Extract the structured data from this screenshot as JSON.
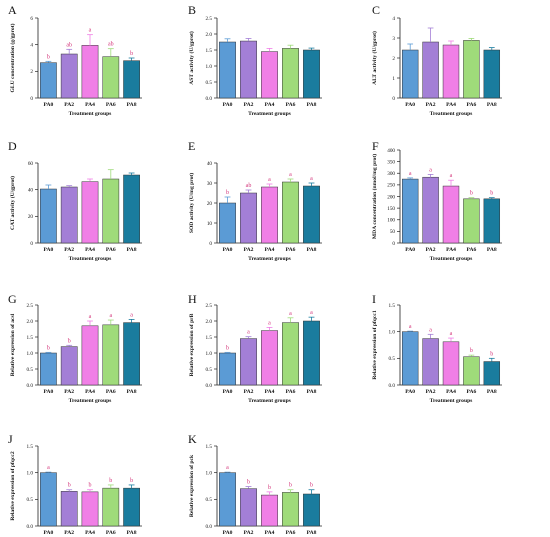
{
  "colors": {
    "PA0": "#5B9BD5",
    "PA2": "#A37FD6",
    "PA4": "#F07FE6",
    "PA6": "#9FDB7A",
    "PA8": "#1A7C9E",
    "sig": "#D4357A",
    "axis": "#222222"
  },
  "chart_data": [
    {
      "panel": "A",
      "type": "bar",
      "categories": [
        "PA0",
        "PA2",
        "PA4",
        "PA6",
        "PA8"
      ],
      "values": [
        2.65,
        3.3,
        3.95,
        3.1,
        2.8
      ],
      "errors": [
        0.1,
        0.35,
        0.8,
        0.6,
        0.2
      ],
      "sig": [
        "b",
        "ab",
        "a",
        "ab",
        "b"
      ],
      "ylabel": "GLU concentration (g/gprot)",
      "xlabel": "Treatment groups",
      "ylim": [
        0,
        6
      ],
      "yticks": [
        "0",
        "2",
        "4",
        "6"
      ]
    },
    {
      "panel": "B",
      "type": "bar",
      "categories": [
        "PA0",
        "PA2",
        "PA4",
        "PA6",
        "PA8"
      ],
      "values": [
        1.75,
        1.78,
        1.45,
        1.55,
        1.5
      ],
      "errors": [
        0.1,
        0.08,
        0.1,
        0.1,
        0.06
      ],
      "sig": [
        "",
        "",
        "",
        "",
        ""
      ],
      "ylabel": "AST activity (U/gprot)",
      "xlabel": "Treatment groups",
      "ylim": [
        0,
        2.5
      ],
      "yticks": [
        "0.0",
        "0.5",
        "1.0",
        "1.5",
        "2.0",
        "2.5"
      ]
    },
    {
      "panel": "C",
      "type": "bar",
      "categories": [
        "PA0",
        "PA2",
        "PA4",
        "PA6",
        "PA8"
      ],
      "values": [
        2.4,
        2.8,
        2.65,
        2.88,
        2.4
      ],
      "errors": [
        0.3,
        0.7,
        0.2,
        0.1,
        0.12
      ],
      "sig": [
        "",
        "",
        "",
        "",
        ""
      ],
      "ylabel": "ALT activity (U/gprot)",
      "xlabel": "Treatment groups",
      "ylim": [
        0,
        4
      ],
      "yticks": [
        "0",
        "1",
        "2",
        "3",
        "4"
      ]
    },
    {
      "panel": "D",
      "type": "bar",
      "categories": [
        "PA0",
        "PA2",
        "PA4",
        "PA6",
        "PA8"
      ],
      "values": [
        40.5,
        42,
        46,
        48,
        51
      ],
      "errors": [
        3,
        1,
        2,
        7,
        1.5
      ],
      "sig": [
        "",
        "",
        "",
        "",
        ""
      ],
      "ylabel": "CAT activity (U/gprot)",
      "xlabel": "Treatment groups",
      "ylim": [
        0,
        60
      ],
      "yticks": [
        "0",
        "20",
        "40",
        "60"
      ]
    },
    {
      "panel": "E",
      "type": "bar",
      "categories": [
        "PA0",
        "PA2",
        "PA4",
        "PA6",
        "PA8"
      ],
      "values": [
        20,
        25,
        28,
        30.5,
        28.5
      ],
      "errors": [
        3,
        1.5,
        1.5,
        1.5,
        1.5
      ],
      "sig": [
        "b",
        "ab",
        "a",
        "a",
        "a"
      ],
      "ylabel": "SOD activity (U/mg prot)",
      "xlabel": "Treatment groups",
      "ylim": [
        0,
        40
      ],
      "yticks": [
        "0",
        "10",
        "20",
        "30",
        "40"
      ]
    },
    {
      "panel": "F",
      "type": "bar",
      "categories": [
        "PA0",
        "PA2",
        "PA4",
        "PA6",
        "PA8"
      ],
      "values": [
        275,
        283,
        245,
        190,
        190
      ],
      "errors": [
        5,
        12,
        25,
        5,
        5
      ],
      "sig": [
        "a",
        "a",
        "a",
        "b",
        "b"
      ],
      "ylabel": "MDA concentration (nmol/mg prot)",
      "xlabel": "Treatment groups",
      "ylim": [
        0,
        400
      ],
      "yticks": [
        "0",
        "50",
        "100",
        "150",
        "200",
        "250",
        "300",
        "350",
        "400"
      ]
    },
    {
      "panel": "G",
      "type": "bar",
      "categories": [
        "PA0",
        "PA2",
        "PA4",
        "PA6",
        "PA8"
      ],
      "values": [
        1.0,
        1.2,
        1.85,
        1.88,
        1.95
      ],
      "errors": [
        0.02,
        0.04,
        0.15,
        0.15,
        0.1
      ],
      "sig": [
        "b",
        "b",
        "a",
        "a",
        "a"
      ],
      "ylabel": "Relative expression of acsl",
      "xlabel": "Treatment groups",
      "ylim": [
        0,
        2.5
      ],
      "yticks": [
        "0.0",
        "0.5",
        "1.0",
        "1.5",
        "2.0",
        "2.5"
      ]
    },
    {
      "panel": "H",
      "type": "bar",
      "categories": [
        "PA0",
        "PA2",
        "PA4",
        "PA6",
        "PA8"
      ],
      "values": [
        1.0,
        1.45,
        1.7,
        1.95,
        2.0
      ],
      "errors": [
        0.02,
        0.06,
        0.1,
        0.15,
        0.12
      ],
      "sig": [
        "b",
        "a",
        "a",
        "a",
        "a"
      ],
      "ylabel": "Relative expression of prB",
      "xlabel": "Treatment groups",
      "ylim": [
        0,
        2.5
      ],
      "yticks": [
        "0.0",
        "0.5",
        "1.0",
        "1.5",
        "2.0",
        "2.5"
      ]
    },
    {
      "panel": "I",
      "type": "bar",
      "categories": [
        "PA0",
        "PA2",
        "PA4",
        "PA6",
        "PA8"
      ],
      "values": [
        1.0,
        0.87,
        0.81,
        0.53,
        0.44
      ],
      "errors": [
        0.01,
        0.08,
        0.07,
        0.03,
        0.06
      ],
      "sig": [
        "a",
        "a",
        "a",
        "b",
        "b"
      ],
      "ylabel": "Relative expression of pfqcc1",
      "xlabel": "Treatment groups",
      "ylim": [
        0,
        1.5
      ],
      "yticks": [
        "0.0",
        "0.5",
        "1.0",
        "1.5"
      ]
    },
    {
      "panel": "J",
      "type": "bar",
      "categories": [
        "PA0",
        "PA2",
        "PA4",
        "PA6",
        "PA8"
      ],
      "values": [
        1.0,
        0.65,
        0.64,
        0.71,
        0.71
      ],
      "errors": [
        0.01,
        0.03,
        0.04,
        0.06,
        0.06
      ],
      "sig": [
        "a",
        "b",
        "b",
        "b",
        "b"
      ],
      "ylabel": "Relative expression of pfqcc2",
      "xlabel": "Treatment groups",
      "ylim": [
        0,
        1.5
      ],
      "yticks": [
        "0.0",
        "0.5",
        "1.0",
        "1.5"
      ]
    },
    {
      "panel": "K",
      "type": "bar",
      "categories": [
        "PA0",
        "PA2",
        "PA4",
        "PA6",
        "PA8"
      ],
      "values": [
        1.0,
        0.7,
        0.58,
        0.63,
        0.6
      ],
      "errors": [
        0.01,
        0.04,
        0.06,
        0.05,
        0.08
      ],
      "sig": [
        "a",
        "b",
        "b",
        "b",
        "b"
      ],
      "ylabel": "Relative expression of pck",
      "xlabel": "Treatment groups",
      "ylim": [
        0,
        1.5
      ],
      "yticks": [
        "0.0",
        "0.5",
        "1.0",
        "1.5"
      ]
    }
  ]
}
